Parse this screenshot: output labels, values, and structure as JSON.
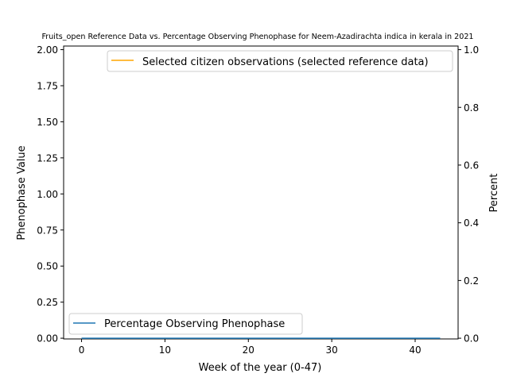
{
  "chart_data": {
    "type": "line",
    "title": "Fruits_open Reference Data vs. Percentage Observing Phenophase for Neem-Azadirachta indica in kerala in 2021",
    "xlabel": "Week of the year (0-47)",
    "ylabel_left": "Phenophase Value",
    "ylabel_right": "Percent",
    "xlim": [
      -2.15,
      45.15
    ],
    "ylim_left": [
      -0.005,
      2.025
    ],
    "ylim_right": [
      -0.0025,
      1.0125
    ],
    "x_ticks": [
      0,
      10,
      20,
      30,
      40
    ],
    "y_left_ticks": [
      "0.00",
      "0.25",
      "0.50",
      "0.75",
      "1.00",
      "1.25",
      "1.50",
      "1.75",
      "2.00"
    ],
    "y_right_ticks": [
      "0.0",
      "0.2",
      "0.4",
      "0.6",
      "0.8",
      "1.0"
    ],
    "series": [
      {
        "name": "Percentage Observing Phenophase",
        "axis": "left",
        "color": "#1f77b4",
        "x": [
          0,
          43
        ],
        "y": [
          0.0,
          0.0
        ]
      },
      {
        "name": "Selected citizen observations (selected reference data)",
        "axis": "right",
        "color": "#ffa500",
        "x": [],
        "y": []
      }
    ],
    "legends": {
      "upper": "top-right",
      "lower": "bottom-left"
    },
    "grid": false
  }
}
